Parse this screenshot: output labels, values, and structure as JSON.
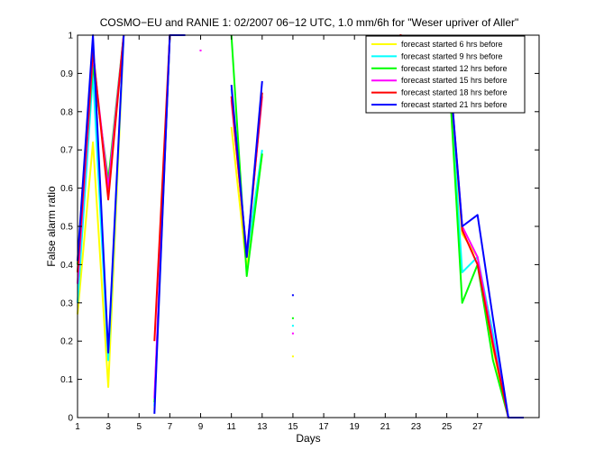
{
  "chart_data": {
    "type": "line",
    "title": "COSMO−EU and RANIE 1: 02/2007 06−12 UTC, 1.0 mm/6h for \"Weser upriver of Aller\"",
    "xlabel": "Days",
    "ylabel": "False alarm ratio",
    "xlim": [
      1,
      31
    ],
    "ylim": [
      0,
      1
    ],
    "x_ticks": [
      1,
      3,
      5,
      7,
      9,
      11,
      13,
      15,
      17,
      19,
      21,
      23,
      25,
      27
    ],
    "x_tick_labels": [
      "1",
      "3",
      "5",
      "7",
      "9",
      "11",
      "13",
      "15",
      "17",
      "19",
      "21",
      "23",
      "25",
      "27"
    ],
    "y_ticks": [
      0,
      0.1,
      0.2,
      0.3,
      0.4,
      0.5,
      0.6,
      0.7,
      0.8,
      0.9,
      1
    ],
    "y_tick_labels": [
      "0",
      "0.1",
      "0.2",
      "0.3",
      "0.4",
      "0.5",
      "0.6",
      "0.7",
      "0.8",
      "0.9",
      "1"
    ],
    "grid": false,
    "legend_position": "top-right",
    "series": [
      {
        "name": "forecast started 6 hrs before",
        "color": "#ffff00",
        "segments": [
          [
            [
              1,
              0.27
            ],
            [
              2,
              0.72
            ],
            [
              3,
              0.08
            ],
            [
              4,
              1.0
            ]
          ],
          [
            [
              6,
              0.02
            ],
            [
              7,
              1.0
            ],
            [
              8,
              1.0
            ]
          ],
          [
            [
              11,
              0.76
            ],
            [
              12,
              0.39
            ],
            [
              13,
              0.69
            ]
          ],
          [
            [
              25,
              1.0
            ],
            [
              26,
              0.48
            ],
            [
              27,
              0.42
            ],
            [
              28,
              0.18
            ],
            [
              29,
              0.0
            ],
            [
              30,
              0.0
            ]
          ]
        ],
        "points": [
          [
            15,
            0.16
          ]
        ]
      },
      {
        "name": "forecast started 9 hrs before",
        "color": "#00ffff",
        "segments": [
          [
            [
              1,
              0.3
            ],
            [
              2,
              0.9
            ],
            [
              3,
              0.15
            ],
            [
              4,
              1.0
            ]
          ],
          [
            [
              6,
              0.03
            ],
            [
              7,
              1.0
            ],
            [
              8,
              1.0
            ]
          ],
          [
            [
              11,
              0.86
            ],
            [
              12,
              0.42
            ],
            [
              13,
              0.7
            ]
          ],
          [
            [
              25,
              1.0
            ],
            [
              26,
              0.38
            ],
            [
              27,
              0.42
            ],
            [
              28,
              0.22
            ],
            [
              29,
              0.0
            ],
            [
              30,
              0.0
            ]
          ]
        ],
        "points": [
          [
            15,
            0.24
          ]
        ]
      },
      {
        "name": "forecast started 12 hrs before",
        "color": "#00ff00",
        "segments": [
          [
            [
              1,
              0.4
            ],
            [
              2,
              0.92
            ],
            [
              3,
              0.62
            ],
            [
              4,
              1.0
            ]
          ],
          [
            [
              6,
              0.04
            ],
            [
              7,
              1.0
            ],
            [
              8,
              1.0
            ]
          ],
          [
            [
              11,
              1.0
            ],
            [
              12,
              0.37
            ],
            [
              13,
              0.69
            ]
          ],
          [
            [
              25,
              1.0
            ],
            [
              26,
              0.3
            ],
            [
              27,
              0.4
            ],
            [
              28,
              0.15
            ],
            [
              29,
              0.0
            ],
            [
              30,
              0.0
            ]
          ]
        ],
        "points": [
          [
            15,
            0.26
          ]
        ]
      },
      {
        "name": "forecast started 15 hrs before",
        "color": "#ff00ff",
        "segments": [
          [
            [
              1,
              0.35
            ],
            [
              2,
              0.95
            ],
            [
              3,
              0.6
            ],
            [
              4,
              1.0
            ]
          ],
          [
            [
              6,
              0.05
            ],
            [
              7,
              1.0
            ],
            [
              8,
              1.0
            ]
          ],
          [
            [
              11,
              0.83
            ],
            [
              12,
              0.43
            ],
            [
              13,
              0.84
            ]
          ],
          [
            [
              25,
              1.0
            ],
            [
              26,
              0.5
            ],
            [
              27,
              0.42
            ],
            [
              28,
              0.2
            ],
            [
              29,
              0.0
            ],
            [
              30,
              0.0
            ]
          ]
        ],
        "points": [
          [
            9,
            0.96
          ],
          [
            15,
            0.22
          ]
        ]
      },
      {
        "name": "forecast started 18 hrs before",
        "color": "#ff0000",
        "segments": [
          [
            [
              1,
              0.38
            ],
            [
              2,
              0.96
            ],
            [
              3,
              0.57
            ],
            [
              4,
              1.0
            ]
          ],
          [
            [
              6,
              0.2
            ],
            [
              7,
              1.0
            ],
            [
              8,
              1.0
            ]
          ],
          [
            [
              11,
              0.84
            ],
            [
              12,
              0.42
            ],
            [
              13,
              0.85
            ]
          ],
          [
            [
              25,
              1.0
            ],
            [
              26,
              0.49
            ],
            [
              27,
              0.4
            ],
            [
              28,
              0.19
            ],
            [
              29,
              0.0
            ],
            [
              30,
              0.0
            ]
          ]
        ],
        "points": [
          [
            22,
            1.0
          ]
        ]
      },
      {
        "name": "forecast started 21 hrs before",
        "color": "#0000ff",
        "segments": [
          [
            [
              1,
              0.41
            ],
            [
              2,
              1.0
            ],
            [
              3,
              0.17
            ],
            [
              4,
              1.0
            ]
          ],
          [
            [
              6,
              0.01
            ],
            [
              7,
              1.0
            ],
            [
              8,
              1.0
            ]
          ],
          [
            [
              11,
              0.87
            ],
            [
              12,
              0.42
            ],
            [
              13,
              0.88
            ]
          ],
          [
            [
              25,
              1.0
            ],
            [
              26,
              0.5
            ],
            [
              27,
              0.53
            ],
            [
              28,
              0.26
            ],
            [
              29,
              0.0
            ],
            [
              30,
              0.0
            ]
          ]
        ],
        "points": [
          [
            15,
            0.32
          ]
        ]
      }
    ]
  }
}
